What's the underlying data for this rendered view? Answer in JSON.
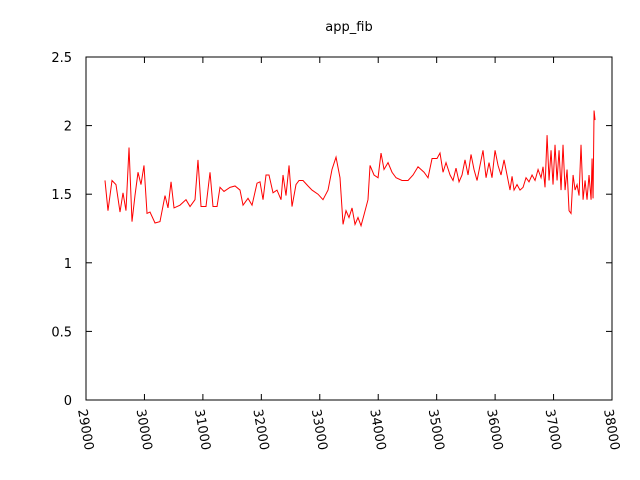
{
  "chart_data": {
    "type": "line",
    "title": "app_fib",
    "color": "#ff0000",
    "x": [
      29325,
      29376,
      29445,
      29513,
      29582,
      29633,
      29684,
      29736,
      29787,
      29838,
      29890,
      29941,
      29992,
      30044,
      30095,
      30181,
      30266,
      30352,
      30403,
      30455,
      30506,
      30608,
      30711,
      30780,
      30865,
      30916,
      30968,
      31053,
      31122,
      31173,
      31242,
      31293,
      31361,
      31464,
      31550,
      31635,
      31687,
      31772,
      31841,
      31926,
      31977,
      32029,
      32080,
      32131,
      32200,
      32268,
      32337,
      32371,
      32422,
      32474,
      32525,
      32593,
      32645,
      32713,
      32799,
      32867,
      32970,
      33055,
      33141,
      33209,
      33278,
      33346,
      33398,
      33449,
      33500,
      33552,
      33603,
      33654,
      33706,
      33757,
      33825,
      33860,
      33928,
      33997,
      34048,
      34099,
      34168,
      34236,
      34305,
      34407,
      34510,
      34596,
      34681,
      34784,
      34852,
      34921,
      35006,
      35057,
      35109,
      35160,
      35229,
      35280,
      35331,
      35383,
      35434,
      35485,
      35537,
      35588,
      35639,
      35691,
      35742,
      35793,
      35845,
      35896,
      35947,
      35999,
      36050,
      36101,
      36153,
      36204,
      36255,
      36290,
      36324,
      36375,
      36426,
      36478,
      36529,
      36580,
      36632,
      36683,
      36735,
      36786,
      36820,
      36854,
      36889,
      36923,
      36957,
      36991,
      37025,
      37060,
      37094,
      37128,
      37162,
      37197,
      37231,
      37265,
      37299,
      37334,
      37368,
      37402,
      37436,
      37470,
      37505,
      37539,
      37573,
      37607,
      37642,
      37659,
      37676,
      37693,
      37710
    ],
    "values": [
      1.6,
      1.38,
      1.6,
      1.57,
      1.37,
      1.51,
      1.38,
      1.84,
      1.3,
      1.49,
      1.66,
      1.57,
      1.71,
      1.36,
      1.37,
      1.29,
      1.3,
      1.49,
      1.4,
      1.59,
      1.4,
      1.42,
      1.46,
      1.41,
      1.46,
      1.75,
      1.41,
      1.41,
      1.66,
      1.41,
      1.41,
      1.55,
      1.52,
      1.55,
      1.56,
      1.53,
      1.42,
      1.47,
      1.42,
      1.58,
      1.59,
      1.46,
      1.64,
      1.64,
      1.51,
      1.53,
      1.46,
      1.64,
      1.49,
      1.71,
      1.41,
      1.57,
      1.6,
      1.6,
      1.56,
      1.53,
      1.5,
      1.46,
      1.53,
      1.68,
      1.77,
      1.62,
      1.28,
      1.38,
      1.33,
      1.4,
      1.28,
      1.33,
      1.27,
      1.35,
      1.46,
      1.71,
      1.64,
      1.62,
      1.8,
      1.68,
      1.73,
      1.66,
      1.62,
      1.6,
      1.6,
      1.64,
      1.7,
      1.66,
      1.62,
      1.76,
      1.76,
      1.8,
      1.66,
      1.73,
      1.64,
      1.6,
      1.69,
      1.59,
      1.64,
      1.75,
      1.64,
      1.79,
      1.68,
      1.6,
      1.71,
      1.82,
      1.62,
      1.73,
      1.62,
      1.82,
      1.71,
      1.64,
      1.75,
      1.64,
      1.53,
      1.63,
      1.53,
      1.57,
      1.53,
      1.55,
      1.62,
      1.59,
      1.64,
      1.6,
      1.68,
      1.62,
      1.7,
      1.55,
      1.93,
      1.6,
      1.82,
      1.57,
      1.86,
      1.6,
      1.82,
      1.53,
      1.86,
      1.53,
      1.68,
      1.38,
      1.36,
      1.64,
      1.53,
      1.57,
      1.49,
      1.86,
      1.46,
      1.6,
      1.46,
      1.64,
      1.46,
      1.76,
      1.47,
      2.11,
      2.04
    ],
    "xlim": [
      29000,
      38000
    ],
    "xticks": [
      29000,
      30000,
      31000,
      32000,
      33000,
      34000,
      35000,
      36000,
      37000,
      38000
    ],
    "ylim": [
      0,
      2.5
    ],
    "yticks": [
      0,
      0.5,
      1,
      1.5,
      2,
      2.5
    ]
  }
}
